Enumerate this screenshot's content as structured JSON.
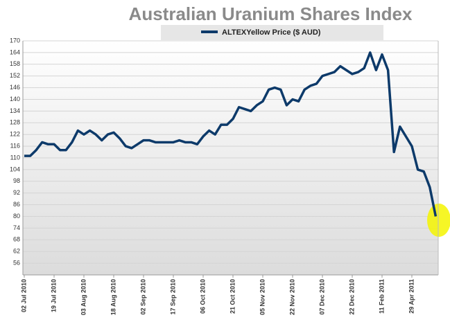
{
  "chart_data": {
    "type": "line",
    "title": "Australian Uranium Shares Index",
    "categories": [
      "02 Jul 2010",
      null,
      null,
      null,
      null,
      "19 Jul 2010",
      null,
      null,
      null,
      null,
      "03 Aug 2010",
      null,
      null,
      null,
      null,
      "18 Aug 2010",
      null,
      null,
      null,
      null,
      "02 Sep 2010",
      null,
      null,
      null,
      null,
      "17 Sep 2010",
      null,
      null,
      null,
      null,
      "06 Oct 2010",
      null,
      null,
      null,
      null,
      "21 Oct 2010",
      null,
      null,
      null,
      null,
      "05 Nov 2010",
      null,
      null,
      null,
      null,
      "22 Nov 2010",
      null,
      null,
      null,
      null,
      "07 Dec 2010",
      null,
      null,
      null,
      null,
      "22 Dec 2010",
      null,
      null,
      null,
      null,
      "11 Feb 2011",
      null,
      null,
      null,
      null,
      "29 Apr 2011",
      null,
      null,
      null,
      null
    ],
    "series": [
      {
        "name": "ALTEXYellow Price ($ AUD)",
        "color": "#0d3a6a",
        "values": [
          111,
          111,
          114,
          118,
          117,
          117,
          114,
          114,
          118,
          124,
          122,
          124,
          122,
          119,
          122,
          123,
          120,
          116,
          115,
          117,
          119,
          119,
          118,
          118,
          118,
          118,
          119,
          118,
          118,
          117,
          121,
          124,
          122,
          127,
          127,
          130,
          136,
          135,
          134,
          137,
          139,
          145,
          146,
          145,
          137,
          140,
          139,
          145,
          147,
          148,
          152,
          153,
          154,
          157,
          155,
          153,
          154,
          156,
          164,
          155,
          163,
          155,
          113,
          126,
          121,
          116,
          104,
          103,
          95,
          80
        ]
      }
    ],
    "ylim": [
      50,
      170
    ],
    "yticks": [
      56,
      62,
      68,
      74,
      80,
      86,
      92,
      98,
      104,
      110,
      116,
      122,
      128,
      134,
      140,
      146,
      152,
      158,
      164,
      170
    ],
    "grid": true
  }
}
